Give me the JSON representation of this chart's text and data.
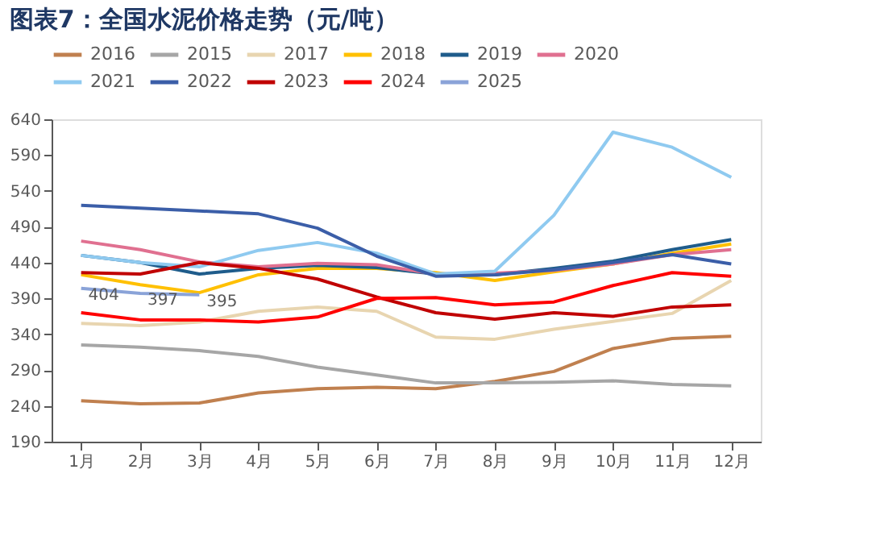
{
  "chart_data": {
    "type": "line",
    "title": "图表7：全国水泥价格走势（元/吨）",
    "categories": [
      "1月",
      "2月",
      "3月",
      "4月",
      "5月",
      "6月",
      "7月",
      "8月",
      "9月",
      "10月",
      "11月",
      "12月"
    ],
    "ylim": [
      190,
      640
    ],
    "yticks": [
      190,
      240,
      290,
      340,
      390,
      440,
      490,
      540,
      590,
      640
    ],
    "grid": false,
    "legend": "top",
    "marker": "none",
    "line_style": "solid",
    "series": [
      {
        "name": "2016",
        "color": "#c0804f",
        "values": [
          247,
          243,
          244,
          258,
          264,
          266,
          264,
          274,
          288,
          320,
          334,
          337
        ]
      },
      {
        "name": "2015",
        "color": "#a6a6a6",
        "values": [
          325,
          322,
          317,
          309,
          294,
          283,
          272,
          272,
          273,
          275,
          270,
          268
        ]
      },
      {
        "name": "2017",
        "color": "#e8d5b0",
        "values": [
          355,
          352,
          357,
          372,
          378,
          372,
          336,
          333,
          347,
          358,
          369,
          415
        ]
      },
      {
        "name": "2018",
        "color": "#ffc000",
        "values": [
          423,
          409,
          398,
          423,
          432,
          432,
          426,
          415,
          427,
          438,
          453,
          466
        ]
      },
      {
        "name": "2019",
        "color": "#1f5c8b",
        "values": [
          450,
          440,
          424,
          432,
          436,
          433,
          424,
          423,
          432,
          442,
          458,
          472
        ]
      },
      {
        "name": "2020",
        "color": "#e07090",
        "values": [
          470,
          458,
          441,
          434,
          439,
          437,
          424,
          425,
          429,
          438,
          451,
          458
        ]
      },
      {
        "name": "2021",
        "color": "#8fcaf0",
        "values": [
          450,
          440,
          434,
          457,
          468,
          453,
          424,
          428,
          506,
          622,
          601,
          559
        ]
      },
      {
        "name": "2022",
        "color": "#3b5ea8",
        "values": [
          520,
          516,
          512,
          508,
          488,
          449,
          421,
          423,
          430,
          440,
          451,
          438
        ]
      },
      {
        "name": "2023",
        "color": "#c00000",
        "values": [
          426,
          424,
          440,
          432,
          417,
          392,
          370,
          361,
          370,
          365,
          378,
          381
        ]
      },
      {
        "name": "2024",
        "color": "#ff0000",
        "values": [
          370,
          360,
          360,
          357,
          364,
          390,
          391,
          381,
          385,
          408,
          426,
          421
        ]
      },
      {
        "name": "2025",
        "color": "#8aa3d8",
        "values": [
          404,
          397,
          395,
          null,
          null,
          null,
          null,
          null,
          null,
          null,
          null,
          null
        ],
        "value_labels": [
          "404",
          "397",
          "395",
          null,
          null,
          null,
          null,
          null,
          null,
          null,
          null,
          null
        ]
      }
    ]
  }
}
